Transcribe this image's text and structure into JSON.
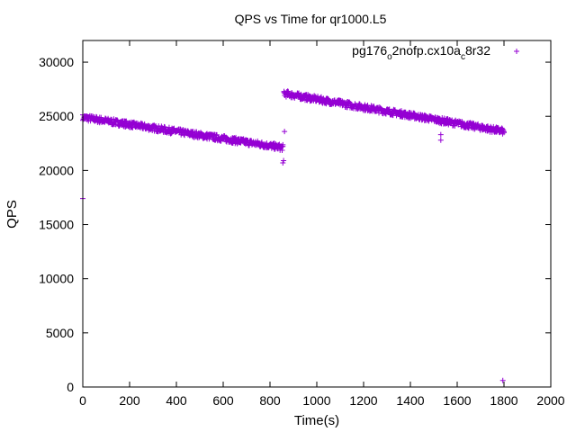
{
  "chart_data": {
    "type": "scatter",
    "title": "QPS vs Time for qr1000.L5",
    "xlabel": "Time(s)",
    "ylabel": "QPS",
    "xlim": [
      0,
      2000
    ],
    "ylim": [
      0,
      32000
    ],
    "xticks": [
      0,
      200,
      400,
      600,
      800,
      1000,
      1200,
      1400,
      1600,
      1800,
      2000
    ],
    "yticks": [
      0,
      5000,
      10000,
      15000,
      20000,
      25000,
      30000
    ],
    "grid": false,
    "legend_position": "top-right",
    "marker": "+",
    "series": [
      {
        "name": "pg176_o2nofp.cx10a_c8r32",
        "legend": {
          "base1": "pg176",
          "sub1": "o",
          "mid": "2nofp.cx10a",
          "sub2": "c",
          "tail": "8r32"
        },
        "color": "#9400d3",
        "segments": [
          {
            "x_start": 0,
            "x_end": 855,
            "y_start": 24900,
            "y_end": 22100,
            "spread": 280
          },
          {
            "x_start": 860,
            "x_end": 1800,
            "y_start": 27100,
            "y_end": 23600,
            "spread": 280
          }
        ],
        "points": [
          {
            "x": 0,
            "y": 17400
          },
          {
            "x": 855,
            "y": 20700
          },
          {
            "x": 858,
            "y": 20900
          },
          {
            "x": 862,
            "y": 23600
          },
          {
            "x": 1530,
            "y": 23300
          },
          {
            "x": 1530,
            "y": 22800
          },
          {
            "x": 1795,
            "y": 600
          }
        ]
      }
    ]
  }
}
